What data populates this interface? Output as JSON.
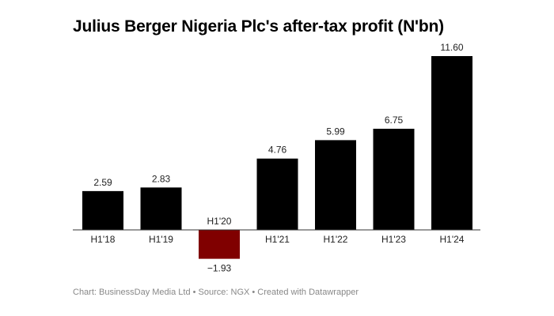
{
  "chart_data": {
    "type": "bar",
    "title": "Julius Berger Nigeria Plc's after-tax profit (N'bn)",
    "categories": [
      "H1'18",
      "H1'19",
      "H1'20",
      "H1'21",
      "H1'22",
      "H1'23",
      "H1'24"
    ],
    "values": [
      2.59,
      2.83,
      -1.93,
      4.76,
      5.99,
      6.75,
      11.6
    ],
    "value_labels": [
      "2.59",
      "2.83",
      "−1.93",
      "4.76",
      "5.99",
      "6.75",
      "11.60"
    ],
    "xlabel": "",
    "ylabel": "",
    "grid": false,
    "colors": {
      "positive": "#000000",
      "negative": "#800000"
    }
  },
  "footer": "Chart: BusinessDay Media Ltd • Source: NGX • Created with Datawrapper"
}
